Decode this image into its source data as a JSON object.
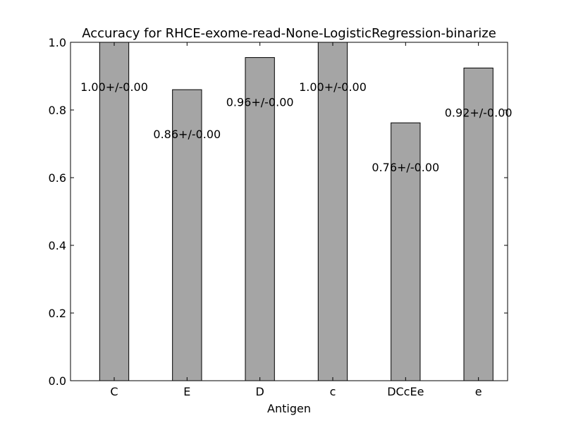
{
  "chart_data": {
    "type": "bar",
    "title": "Accuracy for RHCE-exome-read-None-LogisticRegression-binarize",
    "xlabel": "Antigen",
    "ylabel": "",
    "categories": [
      "C",
      "E",
      "D",
      "c",
      "DCcEe",
      "e"
    ],
    "values": [
      1.0,
      0.86,
      0.955,
      1.0,
      0.762,
      0.924
    ],
    "value_labels": [
      "1.00+/-0.00",
      "0.86+/-0.00",
      "0.96+/-0.00",
      "1.00+/-0.00",
      "0.76+/-0.00",
      "0.92+/-0.00"
    ],
    "ylim": [
      0,
      1.0
    ],
    "yticks": [
      0.0,
      0.2,
      0.4,
      0.6,
      0.8,
      1.0
    ],
    "ytick_labels": [
      "0.0",
      "0.2",
      "0.4",
      "0.6",
      "0.8",
      "1.0"
    ],
    "grid": false,
    "bar_color": "#a5a5a5",
    "edge_color": "#000000"
  }
}
